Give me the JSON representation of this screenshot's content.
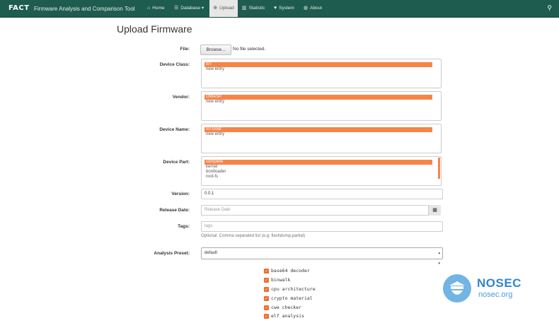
{
  "navbar": {
    "logo": "FACT",
    "title": "Firmware Analysis and Comparison Tool",
    "items": [
      {
        "label": "Home",
        "icon": "home-icon"
      },
      {
        "label": "Database",
        "icon": "list-icon"
      },
      {
        "label": "Upload",
        "icon": "upload-icon"
      },
      {
        "label": "Statistic",
        "icon": "bar-chart-icon"
      },
      {
        "label": "System",
        "icon": "heart-icon"
      },
      {
        "label": "About",
        "icon": "globe-icon"
      }
    ],
    "active": "Upload"
  },
  "page": {
    "title": "Upload Firmware"
  },
  "form": {
    "file": {
      "label": "File:",
      "button": "Browse...",
      "status": "No file selected."
    },
    "device_class": {
      "label": "Device Class:",
      "options": [
        "IoT",
        "new entry"
      ],
      "selected": "IoT"
    },
    "vendor": {
      "label": "Vendor:",
      "options": [
        "OWASP",
        "new entry"
      ],
      "selected": "OWASP"
    },
    "device_name": {
      "label": "Device Name:",
      "options": [
        "IoTGoat",
        "new entry"
      ],
      "selected": "IoTGoat"
    },
    "device_part": {
      "label": "Device Part:",
      "options": [
        "complete",
        "kernel",
        "bootloader",
        "root-fs"
      ],
      "selected": "complete"
    },
    "version": {
      "label": "Version:",
      "value": "0.0.1"
    },
    "release_date": {
      "label": "Release Date:",
      "placeholder": "Release Date"
    },
    "tags": {
      "label": "Tags:",
      "placeholder": "tags",
      "help": "Optional: Comma separated list (e.g: flashdump,partial)"
    },
    "analysis_preset": {
      "label": "Analysis Preset:",
      "value": "default"
    },
    "plugins": [
      "base64 decoder",
      "binwalk",
      "cpu architecture",
      "crypto material",
      "cwe checker",
      "elf analysis"
    ]
  },
  "watermark": {
    "line1": "NOSEC",
    "line2": "nosec.org"
  },
  "colors": {
    "navbar": "#1d5c4e",
    "accent": "#f78447",
    "watermark": "#2f86cf"
  }
}
